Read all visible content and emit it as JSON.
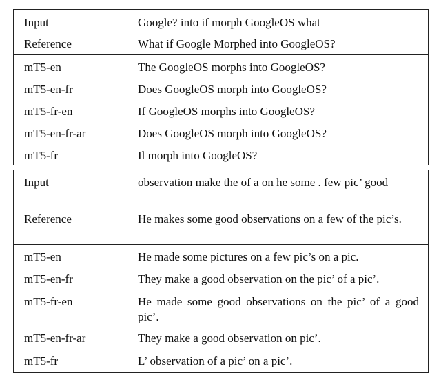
{
  "examples": [
    {
      "input": {
        "label": "Input",
        "text": "Google? into if morph GoogleOS what"
      },
      "reference": {
        "label": "Reference",
        "text": "What if Google Morphed into GoogleOS?"
      },
      "outputs": [
        {
          "model": "mT5-en",
          "text": "The GoogleOS morphs into GoogleOS?"
        },
        {
          "model": "mT5-en-fr",
          "text": "Does GoogleOS morph into GoogleOS?"
        },
        {
          "model": "mT5-fr-en",
          "text": "If GoogleOS morphs into GoogleOS?"
        },
        {
          "model": "mT5-en-fr-ar",
          "text": "Does GoogleOS morph into GoogleOS?"
        },
        {
          "model": "mT5-fr",
          "text": "Il morph into GoogleOS?"
        }
      ]
    },
    {
      "input": {
        "label": "Input",
        "text": "observation make the of a on he some . few pic’ good"
      },
      "reference": {
        "label": "Reference",
        "text": "He makes some good observations on a few of the pic’s."
      },
      "outputs": [
        {
          "model": "mT5-en",
          "text": "He made some pictures on a few pic’s on a pic."
        },
        {
          "model": "mT5-en-fr",
          "text": "They make a good observation on the pic’ of a pic’."
        },
        {
          "model": "mT5-fr-en",
          "text": "He made some good observations on the pic’ of a good pic’."
        },
        {
          "model": "mT5-en-fr-ar",
          "text": "They make a good observation on pic’."
        },
        {
          "model": "mT5-fr",
          "text": "L’ observation of a pic’ on a pic’."
        }
      ]
    }
  ]
}
